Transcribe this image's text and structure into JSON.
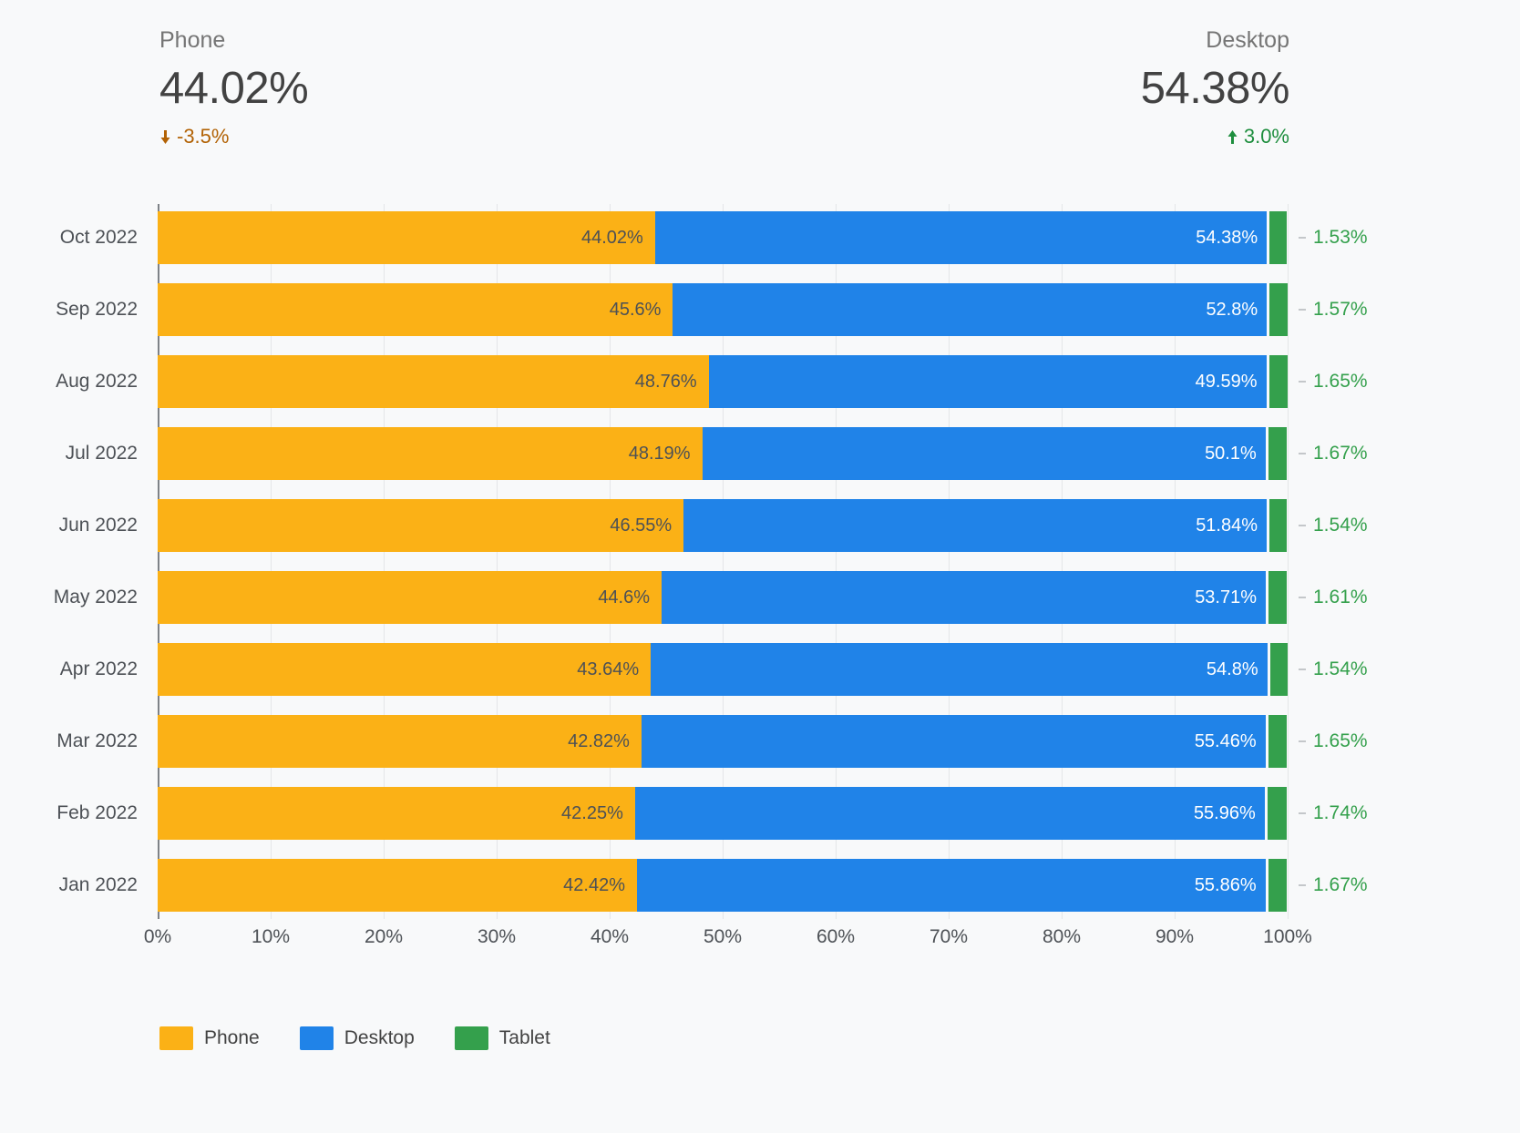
{
  "colors": {
    "phone": "#FBB116",
    "desktop": "#2083E8",
    "tablet": "#34A04C",
    "delta_negative": "#B26205",
    "delta_positive": "#1E8E3E",
    "background": "#F8F9FA"
  },
  "scorecards": {
    "phone": {
      "label": "Phone",
      "value": "44.02%",
      "delta": "-3.5%",
      "direction": "down"
    },
    "desktop": {
      "label": "Desktop",
      "value": "54.38%",
      "delta": "3.0%",
      "direction": "up"
    }
  },
  "chart_data": {
    "type": "bar",
    "stacked": true,
    "orientation": "horizontal",
    "title": "",
    "xlabel": "",
    "ylabel": "",
    "x_axis": {
      "range": [
        0,
        100
      ],
      "ticks": [
        "0%",
        "10%",
        "20%",
        "30%",
        "40%",
        "50%",
        "60%",
        "70%",
        "80%",
        "90%",
        "100%"
      ]
    },
    "grid": true,
    "legend_position": "bottom",
    "categories": [
      "Oct 2022",
      "Sep 2022",
      "Aug 2022",
      "Jul 2022",
      "Jun 2022",
      "May 2022",
      "Apr 2022",
      "Mar 2022",
      "Feb 2022",
      "Jan 2022"
    ],
    "series": [
      {
        "name": "Phone",
        "color": "#FBB116",
        "label_position": "inside",
        "values": [
          44.02,
          45.6,
          48.76,
          48.19,
          46.55,
          44.6,
          43.64,
          42.82,
          42.25,
          42.42
        ],
        "labels": [
          "44.02%",
          "45.6%",
          "48.76%",
          "48.19%",
          "46.55%",
          "44.6%",
          "43.64%",
          "42.82%",
          "42.25%",
          "42.42%"
        ]
      },
      {
        "name": "Desktop",
        "color": "#2083E8",
        "label_position": "inside",
        "values": [
          54.38,
          52.8,
          49.59,
          50.1,
          51.84,
          53.71,
          54.8,
          55.46,
          55.96,
          55.86
        ],
        "labels": [
          "54.38%",
          "52.8%",
          "49.59%",
          "50.1%",
          "51.84%",
          "53.71%",
          "54.8%",
          "55.46%",
          "55.96%",
          "55.86%"
        ]
      },
      {
        "name": "Tablet",
        "color": "#34A04C",
        "label_position": "outside",
        "values": [
          1.53,
          1.57,
          1.65,
          1.67,
          1.54,
          1.61,
          1.54,
          1.65,
          1.74,
          1.67
        ],
        "labels": [
          "1.53%",
          "1.57%",
          "1.65%",
          "1.67%",
          "1.54%",
          "1.61%",
          "1.54%",
          "1.65%",
          "1.74%",
          "1.67%"
        ]
      }
    ],
    "legend": [
      "Phone",
      "Desktop",
      "Tablet"
    ]
  }
}
